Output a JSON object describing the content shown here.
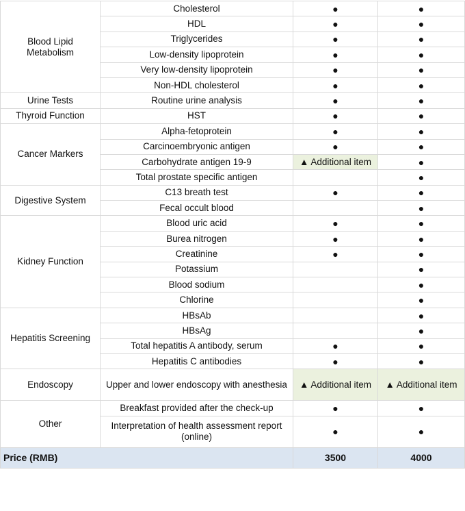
{
  "marks": {
    "included": "●",
    "additional": "▲ Additional item"
  },
  "colors": {
    "additional_bg": "#ebf1de",
    "price_bg": "#dbe5f1",
    "border": "#d9d9d9"
  },
  "groups": [
    {
      "category": "Blood Lipid Metabolism",
      "items": [
        {
          "name": "Cholesterol",
          "p3500": "included",
          "p4000": "included"
        },
        {
          "name": "HDL",
          "p3500": "included",
          "p4000": "included"
        },
        {
          "name": "Triglycerides",
          "p3500": "included",
          "p4000": "included"
        },
        {
          "name": "Low-density lipoprotein",
          "p3500": "included",
          "p4000": "included"
        },
        {
          "name": "Very low-density lipoprotein",
          "p3500": "included",
          "p4000": "included"
        },
        {
          "name": "Non-HDL cholesterol",
          "p3500": "included",
          "p4000": "included"
        }
      ]
    },
    {
      "category": "Urine Tests",
      "items": [
        {
          "name": "Routine urine analysis",
          "p3500": "included",
          "p4000": "included"
        }
      ]
    },
    {
      "category": "Thyroid Function",
      "items": [
        {
          "name": "HST",
          "p3500": "included",
          "p4000": "included"
        }
      ]
    },
    {
      "category": "Cancer Markers",
      "items": [
        {
          "name": "Alpha-fetoprotein",
          "p3500": "included",
          "p4000": "included"
        },
        {
          "name": "Carcinoembryonic antigen",
          "p3500": "included",
          "p4000": "included"
        },
        {
          "name": "Carbohydrate antigen 19-9",
          "p3500": "additional",
          "p4000": "included"
        },
        {
          "name": "Total prostate specific antigen",
          "p3500": "",
          "p4000": "included"
        }
      ]
    },
    {
      "category": "Digestive System",
      "items": [
        {
          "name": "C13 breath test",
          "p3500": "included",
          "p4000": "included"
        },
        {
          "name": "Fecal occult blood",
          "p3500": "",
          "p4000": "included"
        }
      ]
    },
    {
      "category": "Kidney Function",
      "items": [
        {
          "name": "Blood uric acid",
          "p3500": "included",
          "p4000": "included"
        },
        {
          "name": "Burea nitrogen",
          "p3500": "included",
          "p4000": "included"
        },
        {
          "name": "Creatinine",
          "p3500": "included",
          "p4000": "included"
        },
        {
          "name": "Potassium",
          "p3500": "",
          "p4000": "included"
        },
        {
          "name": "Blood sodium",
          "p3500": "",
          "p4000": "included"
        },
        {
          "name": "Chlorine",
          "p3500": "",
          "p4000": "included"
        }
      ]
    },
    {
      "category": "Hepatitis Screening",
      "items": [
        {
          "name": "HBsAb",
          "p3500": "",
          "p4000": "included"
        },
        {
          "name": "HBsAg",
          "p3500": "",
          "p4000": "included"
        },
        {
          "name": "Total hepatitis A antibody, serum",
          "p3500": "included",
          "p4000": "included"
        },
        {
          "name": "Hepatitis C antibodies",
          "p3500": "included",
          "p4000": "included"
        }
      ]
    },
    {
      "category": "Endoscopy",
      "items": [
        {
          "name": "Upper and lower endoscopy with anesthesia",
          "p3500": "additional",
          "p4000": "additional",
          "tall": true
        }
      ]
    },
    {
      "category": "Other",
      "items": [
        {
          "name": "Breakfast provided after the check-up",
          "p3500": "included",
          "p4000": "included"
        },
        {
          "name": "Interpretation of health assessment report (online)",
          "p3500": "included",
          "p4000": "included",
          "tall": true
        }
      ]
    }
  ],
  "price": {
    "label": "Price (RMB)",
    "p3500": "3500",
    "p4000": "4000"
  }
}
